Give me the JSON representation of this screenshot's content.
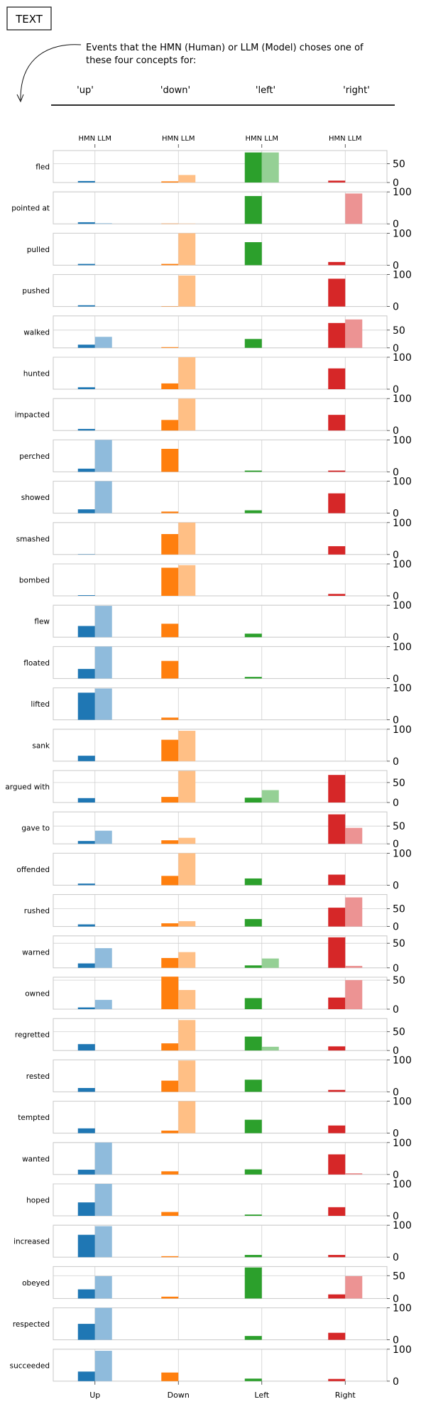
{
  "header": {
    "badge": "TEXT",
    "caption_line1": "Events that the HMN (Human) or LLM (Model) choses one of",
    "caption_line2": "these four concepts for:",
    "concepts": [
      "'up'",
      "'down'",
      "'left'",
      "'right'"
    ]
  },
  "chart_data": {
    "type": "bar",
    "categories": [
      "Up",
      "Down",
      "Left",
      "Right"
    ],
    "top_labels": [
      "HMN LLM",
      "HMN LLM",
      "HMN LLM",
      "HMN LLM"
    ],
    "series": [
      {
        "name": "HMN"
      },
      {
        "name": "LLM"
      }
    ],
    "colors": {
      "HMN": [
        "#1f77b4",
        "#ff7f0e",
        "#2ca02c",
        "#d62728"
      ],
      "LLM": [
        "#8fbbdc",
        "#ffbf85",
        "#95d095",
        "#ec9393"
      ]
    },
    "grid": true,
    "panels": [
      {
        "label": "fled",
        "ymax": 85,
        "yticks": [
          0,
          50
        ],
        "hmn": [
          4,
          3,
          80,
          5
        ],
        "llm": [
          0,
          20,
          80,
          0
        ]
      },
      {
        "label": "pointed at",
        "ymax": 100,
        "yticks": [
          0,
          100
        ],
        "hmn": [
          5,
          1,
          87,
          0
        ],
        "llm": [
          2,
          1,
          0,
          95
        ]
      },
      {
        "label": "pulled",
        "ymax": 100,
        "yticks": [
          0,
          100
        ],
        "hmn": [
          4,
          4,
          72,
          10
        ],
        "llm": [
          0,
          100,
          0,
          0
        ]
      },
      {
        "label": "pushed",
        "ymax": 100,
        "yticks": [
          0,
          100
        ],
        "hmn": [
          4,
          1,
          0,
          87
        ],
        "llm": [
          0,
          97,
          0,
          0
        ]
      },
      {
        "label": "walked",
        "ymax": 90,
        "yticks": [
          0,
          50
        ],
        "hmn": [
          9,
          2,
          25,
          70
        ],
        "llm": [
          31,
          0,
          0,
          80
        ]
      },
      {
        "label": "hunted",
        "ymax": 100,
        "yticks": [
          0,
          100
        ],
        "hmn": [
          6,
          18,
          0,
          65
        ],
        "llm": [
          0,
          100,
          0,
          0
        ]
      },
      {
        "label": "impacted",
        "ymax": 100,
        "yticks": [
          0,
          100
        ],
        "hmn": [
          5,
          33,
          0,
          49
        ],
        "llm": [
          0,
          100,
          0,
          0
        ]
      },
      {
        "label": "perched",
        "ymax": 100,
        "yticks": [
          0,
          100
        ],
        "hmn": [
          10,
          72,
          4,
          4
        ],
        "llm": [
          100,
          0,
          0,
          0
        ]
      },
      {
        "label": "showed",
        "ymax": 100,
        "yticks": [
          0,
          100
        ],
        "hmn": [
          12,
          5,
          9,
          62
        ],
        "llm": [
          100,
          0,
          0,
          0
        ]
      },
      {
        "label": "smashed",
        "ymax": 100,
        "yticks": [
          0,
          100
        ],
        "hmn": [
          1,
          64,
          0,
          26
        ],
        "llm": [
          0,
          100,
          0,
          0
        ]
      },
      {
        "label": "bombed",
        "ymax": 100,
        "yticks": [
          0,
          100
        ],
        "hmn": [
          2,
          88,
          0,
          6
        ],
        "llm": [
          0,
          96,
          0,
          0
        ]
      },
      {
        "label": "flew",
        "ymax": 100,
        "yticks": [
          0,
          100
        ],
        "hmn": [
          35,
          42,
          11,
          0
        ],
        "llm": [
          98,
          0,
          0,
          0
        ]
      },
      {
        "label": "floated",
        "ymax": 100,
        "yticks": [
          0,
          100
        ],
        "hmn": [
          30,
          55,
          5,
          0
        ],
        "llm": [
          100,
          0,
          0,
          0
        ]
      },
      {
        "label": "lifted",
        "ymax": 100,
        "yticks": [
          0,
          100
        ],
        "hmn": [
          85,
          7,
          0,
          0
        ],
        "llm": [
          98,
          0,
          0,
          0
        ]
      },
      {
        "label": "sank",
        "ymax": 100,
        "yticks": [
          0,
          100
        ],
        "hmn": [
          17,
          67,
          0,
          0
        ],
        "llm": [
          0,
          95,
          0,
          0
        ]
      },
      {
        "label": "argued with",
        "ymax": 80,
        "yticks": [
          0,
          50
        ],
        "hmn": [
          11,
          14,
          12,
          69
        ],
        "llm": [
          0,
          79,
          31,
          0
        ]
      },
      {
        "label": "gave to",
        "ymax": 90,
        "yticks": [
          0,
          50
        ],
        "hmn": [
          8,
          10,
          0,
          83
        ],
        "llm": [
          37,
          17,
          0,
          45
        ]
      },
      {
        "label": "offended",
        "ymax": 100,
        "yticks": [
          0,
          100
        ],
        "hmn": [
          5,
          29,
          21,
          33
        ],
        "llm": [
          0,
          100,
          0,
          0
        ]
      },
      {
        "label": "rushed",
        "ymax": 90,
        "yticks": [
          0,
          50
        ],
        "hmn": [
          6,
          9,
          21,
          53
        ],
        "llm": [
          0,
          15,
          0,
          82
        ]
      },
      {
        "label": "warned",
        "ymax": 65,
        "yticks": [
          0,
          50
        ],
        "hmn": [
          9,
          20,
          5,
          62
        ],
        "llm": [
          40,
          32,
          19,
          4
        ]
      },
      {
        "label": "owned",
        "ymax": 55,
        "yticks": [
          0,
          50
        ],
        "hmn": [
          3,
          56,
          19,
          20
        ],
        "llm": [
          16,
          33,
          0,
          50
        ]
      },
      {
        "label": "regretted",
        "ymax": 85,
        "yticks": [
          0,
          50
        ],
        "hmn": [
          17,
          19,
          37,
          11
        ],
        "llm": [
          0,
          81,
          10,
          0
        ]
      },
      {
        "label": "rested",
        "ymax": 100,
        "yticks": [
          0,
          100
        ],
        "hmn": [
          12,
          35,
          38,
          6
        ],
        "llm": [
          0,
          98,
          0,
          0
        ]
      },
      {
        "label": "tempted",
        "ymax": 100,
        "yticks": [
          0,
          100
        ],
        "hmn": [
          15,
          8,
          42,
          24
        ],
        "llm": [
          0,
          100,
          0,
          0
        ]
      },
      {
        "label": "wanted",
        "ymax": 100,
        "yticks": [
          0,
          100
        ],
        "hmn": [
          15,
          10,
          16,
          63
        ],
        "llm": [
          100,
          0,
          0,
          4
        ]
      },
      {
        "label": "hoped",
        "ymax": 100,
        "yticks": [
          0,
          100
        ],
        "hmn": [
          42,
          12,
          4,
          27
        ],
        "llm": [
          100,
          0,
          0,
          0
        ]
      },
      {
        "label": "increased",
        "ymax": 100,
        "yticks": [
          0,
          100
        ],
        "hmn": [
          70,
          3,
          7,
          7
        ],
        "llm": [
          97,
          0,
          0,
          0
        ]
      },
      {
        "label": "obeyed",
        "ymax": 70,
        "yticks": [
          0,
          50
        ],
        "hmn": [
          20,
          4,
          68,
          9
        ],
        "llm": [
          49,
          0,
          0,
          49
        ]
      },
      {
        "label": "respected",
        "ymax": 100,
        "yticks": [
          0,
          100
        ],
        "hmn": [
          50,
          0,
          12,
          22
        ],
        "llm": [
          100,
          0,
          0,
          0
        ]
      },
      {
        "label": "succeeded",
        "ymax": 100,
        "yticks": [
          0,
          100
        ],
        "hmn": [
          30,
          27,
          8,
          7
        ],
        "llm": [
          95,
          0,
          0,
          0
        ]
      }
    ]
  }
}
